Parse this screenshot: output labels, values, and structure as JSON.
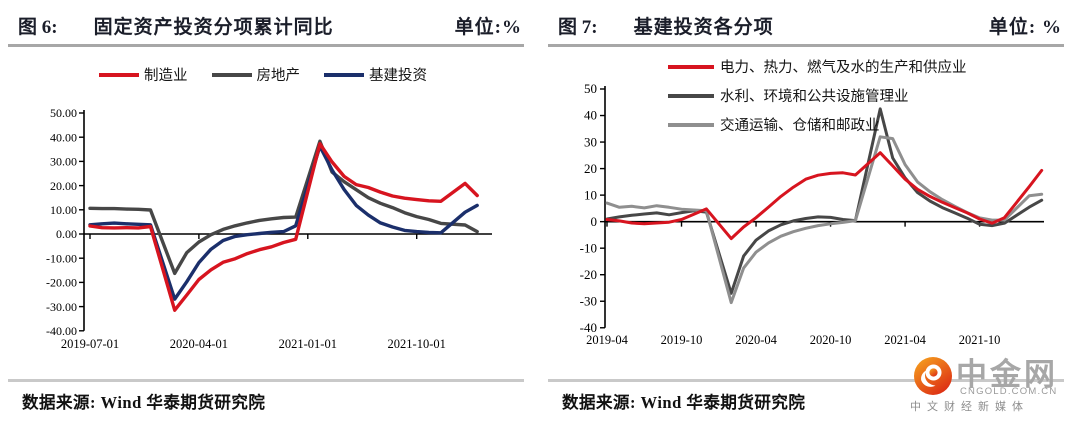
{
  "panels": [
    {
      "fig_label": "图 6:",
      "title": "固定资产投资分项累计同比",
      "unit": "单位:%",
      "source": "数据来源: Wind 华泰期货研究院",
      "chart_data": {
        "type": "line",
        "title": "固定资产投资分项累计同比",
        "unit": "%",
        "grid": false,
        "legend_position": "top-center",
        "ylim": [
          -40,
          50
        ],
        "y_ticks": [
          {
            "v": 50,
            "label": "50.00"
          },
          {
            "v": 40,
            "label": "40.00"
          },
          {
            "v": 30,
            "label": "30.00"
          },
          {
            "v": 20,
            "label": "20.00"
          },
          {
            "v": 10,
            "label": "10.00"
          },
          {
            "v": 0,
            "label": "0.00"
          },
          {
            "v": -10,
            "label": "-10.00"
          },
          {
            "v": -20,
            "label": "-20.00"
          },
          {
            "v": -30,
            "label": "-30.00"
          },
          {
            "v": -40,
            "label": "-40.00"
          }
        ],
        "x_ticks": [
          {
            "m": 0,
            "label": "2019-07-01"
          },
          {
            "m": 9,
            "label": "2020-04-01"
          },
          {
            "m": 18,
            "label": "2021-01-01"
          },
          {
            "m": 27,
            "label": "2021-10-01"
          }
        ],
        "categories": [
          "2019-07",
          "2019-08",
          "2019-09",
          "2019-10",
          "2019-11",
          "2019-12",
          "2020-02",
          "2020-03",
          "2020-04",
          "2020-05",
          "2020-06",
          "2020-07",
          "2020-08",
          "2020-09",
          "2020-10",
          "2020-11",
          "2020-12",
          "2021-02",
          "2021-03",
          "2021-04",
          "2021-05",
          "2021-06",
          "2021-07",
          "2021-08",
          "2021-09",
          "2021-10",
          "2021-11",
          "2021-12",
          "2022-02",
          "2022-03"
        ],
        "x_offsets": [
          0,
          1,
          2,
          3,
          4,
          5,
          7,
          8,
          9,
          10,
          11,
          12,
          13,
          14,
          15,
          16,
          17,
          19,
          20,
          21,
          22,
          23,
          24,
          25,
          26,
          27,
          28,
          29,
          31,
          32
        ],
        "series": [
          {
            "name": "制造业",
            "color": "#d7141f",
            "z": 2,
            "values": [
              3.3,
              2.6,
              2.5,
              2.6,
              2.5,
              3.1,
              -31.5,
              -25.2,
              -18.8,
              -14.8,
              -11.7,
              -10.2,
              -8.1,
              -6.5,
              -5.3,
              -3.5,
              -2.2,
              37.3,
              29.8,
              23.8,
              20.4,
              19.2,
              17.3,
              15.7,
              14.8,
              14.2,
              13.7,
              13.5,
              20.9,
              15.9
            ]
          },
          {
            "name": "房地产",
            "color": "#474747",
            "z": 0,
            "values": [
              10.6,
              10.5,
              10.5,
              10.3,
              10.2,
              9.9,
              -16.3,
              -7.7,
              -3.3,
              -0.3,
              1.9,
              3.4,
              4.6,
              5.6,
              6.3,
              6.8,
              7.0,
              38.3,
              25.6,
              21.6,
              18.3,
              15.0,
              12.7,
              10.9,
              8.8,
              7.2,
              6.0,
              4.4,
              3.7,
              1.0
            ]
          },
          {
            "name": "基建投资",
            "color": "#1b2f6b",
            "z": 1,
            "values": [
              3.8,
              4.2,
              4.5,
              4.2,
              4.0,
              3.8,
              -26.9,
              -19.7,
              -11.8,
              -6.3,
              -2.7,
              -1.0,
              -0.3,
              0.2,
              0.7,
              1.0,
              3.4,
              36.3,
              26.5,
              18.4,
              11.8,
              7.8,
              4.6,
              2.9,
              1.5,
              1.0,
              0.6,
              0.5,
              9.0,
              11.8
            ]
          }
        ]
      }
    },
    {
      "fig_label": "图 7:",
      "title": "基建投资各分项",
      "unit": "单位: %",
      "source": "数据来源: Wind 华泰期货研究院",
      "chart_data": {
        "type": "line",
        "title": "基建投资各分项",
        "unit": "%",
        "grid": false,
        "legend_position": "top-left",
        "ylim": [
          -40,
          50
        ],
        "y_ticks": [
          {
            "v": 50,
            "label": "50"
          },
          {
            "v": 40,
            "label": "40"
          },
          {
            "v": 30,
            "label": "30"
          },
          {
            "v": 20,
            "label": "20"
          },
          {
            "v": 10,
            "label": "10"
          },
          {
            "v": 0,
            "label": "0"
          },
          {
            "v": -10,
            "label": "-10"
          },
          {
            "v": -20,
            "label": "-20"
          },
          {
            "v": -30,
            "label": "-30"
          },
          {
            "v": -40,
            "label": "-40"
          }
        ],
        "x_ticks": [
          {
            "m": 0,
            "label": "2019-04"
          },
          {
            "m": 6,
            "label": "2019-10"
          },
          {
            "m": 12,
            "label": "2020-04"
          },
          {
            "m": 18,
            "label": "2020-10"
          },
          {
            "m": 24,
            "label": "2021-04"
          },
          {
            "m": 30,
            "label": "2021-10"
          }
        ],
        "categories": [
          "2019-04",
          "2019-05",
          "2019-06",
          "2019-07",
          "2019-08",
          "2019-09",
          "2019-10",
          "2019-11",
          "2019-12",
          "2020-02",
          "2020-03",
          "2020-04",
          "2020-05",
          "2020-06",
          "2020-07",
          "2020-08",
          "2020-09",
          "2020-10",
          "2020-11",
          "2020-12",
          "2021-02",
          "2021-03",
          "2021-04",
          "2021-05",
          "2021-06",
          "2021-07",
          "2021-08",
          "2021-09",
          "2021-10",
          "2021-11",
          "2021-12",
          "2022-02",
          "2022-03"
        ],
        "x_offsets": [
          0,
          1,
          2,
          3,
          4,
          5,
          6,
          7,
          8,
          10,
          11,
          12,
          13,
          14,
          15,
          16,
          17,
          18,
          19,
          20,
          22,
          23,
          24,
          25,
          26,
          27,
          28,
          29,
          30,
          31,
          32,
          34,
          35
        ],
        "series": [
          {
            "name": "电力、热力、燃气及水的生产和供应业",
            "color": "#d7141f",
            "z": 2,
            "values": [
              0.8,
              0.3,
              -0.5,
              -0.8,
              -0.5,
              -0.2,
              0.8,
              2.8,
              4.8,
              -6.4,
              -2.0,
              1.5,
              5.5,
              9.5,
              13.0,
              16.0,
              17.5,
              18.2,
              18.4,
              17.6,
              26.0,
              21.0,
              16.0,
              12.2,
              9.5,
              7.3,
              5.3,
              3.3,
              1.0,
              -0.6,
              1.5,
              13.2,
              19.3
            ]
          },
          {
            "name": "水利、环境和公共设施管理业",
            "color": "#474747",
            "z": 0,
            "values": [
              1.0,
              1.8,
              2.4,
              2.9,
              3.3,
              2.6,
              3.4,
              4.1,
              3.6,
              -27.0,
              -13.0,
              -7.0,
              -3.5,
              -1.2,
              0.3,
              1.2,
              1.8,
              1.6,
              0.8,
              0.4,
              42.5,
              24.0,
              16.5,
              11.0,
              7.8,
              5.3,
              3.3,
              1.3,
              -1.0,
              -1.5,
              -0.6,
              5.5,
              8.1
            ]
          },
          {
            "name": "交通运输、仓储和邮政业",
            "color": "#8f8f8f",
            "z": 1,
            "values": [
              7.0,
              5.4,
              5.8,
              5.2,
              6.0,
              5.4,
              4.7,
              4.4,
              4.1,
              -30.5,
              -17.5,
              -11.5,
              -8.0,
              -5.5,
              -3.8,
              -2.5,
              -1.5,
              -0.8,
              -0.3,
              0.4,
              32.0,
              31.3,
              21.5,
              15.0,
              11.3,
              8.3,
              5.8,
              3.4,
              1.4,
              0.6,
              0.6,
              9.8,
              10.3
            ]
          }
        ]
      }
    }
  ],
  "logo": {
    "name": "中金网",
    "domain": "CNGOLD.COM.CN",
    "tagline": "中文财经新媒体",
    "mark_colors": {
      "top": "#f7a81f",
      "bottom": "#dd2e14"
    }
  }
}
